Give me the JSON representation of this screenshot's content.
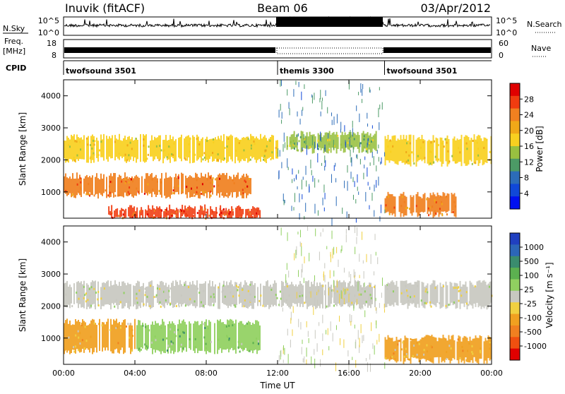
{
  "header": {
    "station": "Inuvik (fitACF)",
    "beam": "Beam 06",
    "date": "03/Apr/2012"
  },
  "strip_panels": {
    "nsky": {
      "left_label": "N.Sky",
      "right_label": "N.Search",
      "left_ticks": [
        "10^5",
        "10^0"
      ],
      "right_ticks": [
        "10^5",
        "10^0"
      ]
    },
    "freq": {
      "left_label_top": "Freq.",
      "left_label_bottom": "[MHz]",
      "right_label": "Nave",
      "left_ticks": [
        "18",
        "8"
      ],
      "right_ticks": [
        "60",
        "0"
      ]
    },
    "cpid": {
      "label": "CPID",
      "segments": [
        {
          "name": "twofsound 3501",
          "start_hour": 0,
          "end_hour": 12
        },
        {
          "name": "themis 3300",
          "start_hour": 12,
          "end_hour": 18
        },
        {
          "name": "twofsound 3501",
          "start_hour": 18,
          "end_hour": 24
        }
      ]
    }
  },
  "axes": {
    "ylabel": "Slant Range [km]",
    "xlabel": "Time UT",
    "y_ticks": [
      "4000",
      "3000",
      "2000",
      "1000"
    ],
    "x_ticks": [
      "00:00",
      "04:00",
      "08:00",
      "12:00",
      "16:00",
      "20:00",
      "00:00"
    ]
  },
  "colorbars": {
    "power": {
      "label": "Power [dB]",
      "ticks": [
        "28",
        "24",
        "20",
        "16",
        "12",
        "8",
        "4"
      ],
      "colors": [
        "#e00000",
        "#f03c10",
        "#f08020",
        "#f0a818",
        "#f8d020",
        "#98c040",
        "#4c9a66",
        "#2c6cb8",
        "#1048d8",
        "#0010f0"
      ]
    },
    "velocity": {
      "label": "Velocity [m s⁻¹]",
      "ticks": [
        "1000",
        "500",
        "100",
        "25",
        "-25",
        "-100",
        "-500",
        "-1000"
      ],
      "colors": [
        "#2040c0",
        "#2c66b8",
        "#3a8c6e",
        "#5cb050",
        "#90d060",
        "#c8c8c0",
        "#f0d040",
        "#f0a020",
        "#f08020",
        "#f05010",
        "#e00000"
      ]
    }
  },
  "chart_data": {
    "type": "heatmap",
    "x_range_hours": [
      0,
      24
    ],
    "y_range_km": [
      180,
      4500
    ],
    "panels": [
      {
        "name": "Power",
        "unit": "dB",
        "scale_range": [
          0,
          32
        ],
        "regions": [
          {
            "start_hour": 0,
            "end_hour": 12,
            "range_km": [
              2000,
              2700
            ],
            "power": 18
          },
          {
            "start_hour": 0,
            "end_hour": 10.5,
            "range_km": [
              900,
              1500
            ],
            "power": 26
          },
          {
            "start_hour": 2.5,
            "end_hour": 11,
            "range_km": [
              200,
              500
            ],
            "power": 28
          },
          {
            "start_hour": 12.5,
            "end_hour": 17.5,
            "range_km": [
              2300,
              2800
            ],
            "power": 14
          },
          {
            "start_hour": 18,
            "end_hour": 24,
            "range_km": [
              1900,
              2700
            ],
            "power": 18
          },
          {
            "start_hour": 18,
            "end_hour": 22,
            "range_km": [
              300,
              900
            ],
            "power": 24
          }
        ]
      },
      {
        "name": "Velocity",
        "unit": "m/s",
        "scale_range": [
          -1000,
          1000
        ],
        "regions": [
          {
            "start_hour": 0,
            "end_hour": 17.5,
            "range_km": [
              2000,
              2700
            ],
            "velocity": 0
          },
          {
            "start_hour": 0,
            "end_hour": 4,
            "range_km": [
              600,
              1500
            ],
            "velocity": -300
          },
          {
            "start_hour": 4,
            "end_hour": 11,
            "range_km": [
              600,
              1500
            ],
            "velocity": 300
          },
          {
            "start_hour": 18,
            "end_hour": 24,
            "range_km": [
              2000,
              2700
            ],
            "velocity": 0
          },
          {
            "start_hour": 18,
            "end_hour": 24,
            "range_km": [
              300,
              1000
            ],
            "velocity": -300
          }
        ]
      }
    ]
  }
}
